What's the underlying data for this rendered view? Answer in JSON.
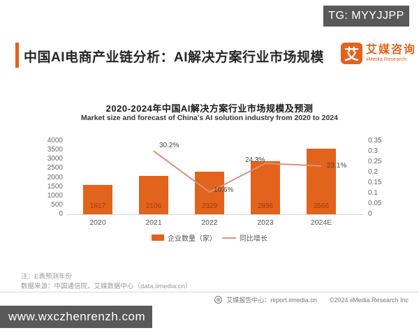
{
  "badge": {
    "text": "TG: MYYJJPP"
  },
  "header": {
    "title": "中国AI电商产业链分析：AI解决方案行业市场规模",
    "logo": {
      "icon_char": "艾",
      "name_cn": "艾媒咨询",
      "name_en": "iiMedia Research"
    }
  },
  "chart": {
    "title": "2020-2024年中国AI解决方案行业市场规模及预测",
    "subtitle": "Market size and forecast of China's AI solution industry from 2020 to 2024"
  },
  "chart_data": {
    "type": "bar",
    "categories": [
      "2020",
      "2021",
      "2022",
      "2023",
      "2024E"
    ],
    "series": [
      {
        "name": "企业数量（家）",
        "type": "bar",
        "axis": "left",
        "color": "#E2631C",
        "values": [
          1617,
          2106,
          2329,
          2896,
          3566
        ]
      },
      {
        "name": "同比增长",
        "type": "line",
        "axis": "right",
        "color": "#D8917F",
        "values": [
          null,
          0.302,
          0.106,
          0.243,
          0.231
        ],
        "labels": [
          "",
          "30.2%",
          "10.6%",
          "24.3%",
          "23.1%"
        ]
      }
    ],
    "title": "2020-2024年中国AI解决方案行业市场规模及预测",
    "xlabel": "",
    "ylabel": "",
    "left_axis": {
      "min": 0,
      "max": 4000,
      "step": 500,
      "ticks": [
        "0",
        "500",
        "1000",
        "1500",
        "2000",
        "2500",
        "3000",
        "3500",
        "4000"
      ]
    },
    "right_axis": {
      "min": 0,
      "max": 0.35,
      "step": 0.05,
      "ticks": [
        "0",
        "0.05",
        "0.1",
        "0.15",
        "0.2",
        "0.25",
        "0.3",
        "0.35"
      ]
    },
    "legend": [
      "企业数量（家）",
      "同比增长"
    ],
    "legend_position": "bottom",
    "grid": false
  },
  "notes": {
    "line1": "注：E表预测年份",
    "line2": "数据来源：中国通信院，艾媒数据中心（data.iimedia.cn）"
  },
  "footer": {
    "report_center": "艾媒报告中心：report.iimedia.cn",
    "copyright": "©2024  iiMedia Research  Inc"
  },
  "watermark": {
    "url": "www.wxczhenrenzh.com"
  },
  "colors": {
    "accent": "#E2631C",
    "bar": "#E2631C",
    "line": "#D8917F",
    "badge_bg": "#595959",
    "bar_value_label": "#A23A1A"
  }
}
